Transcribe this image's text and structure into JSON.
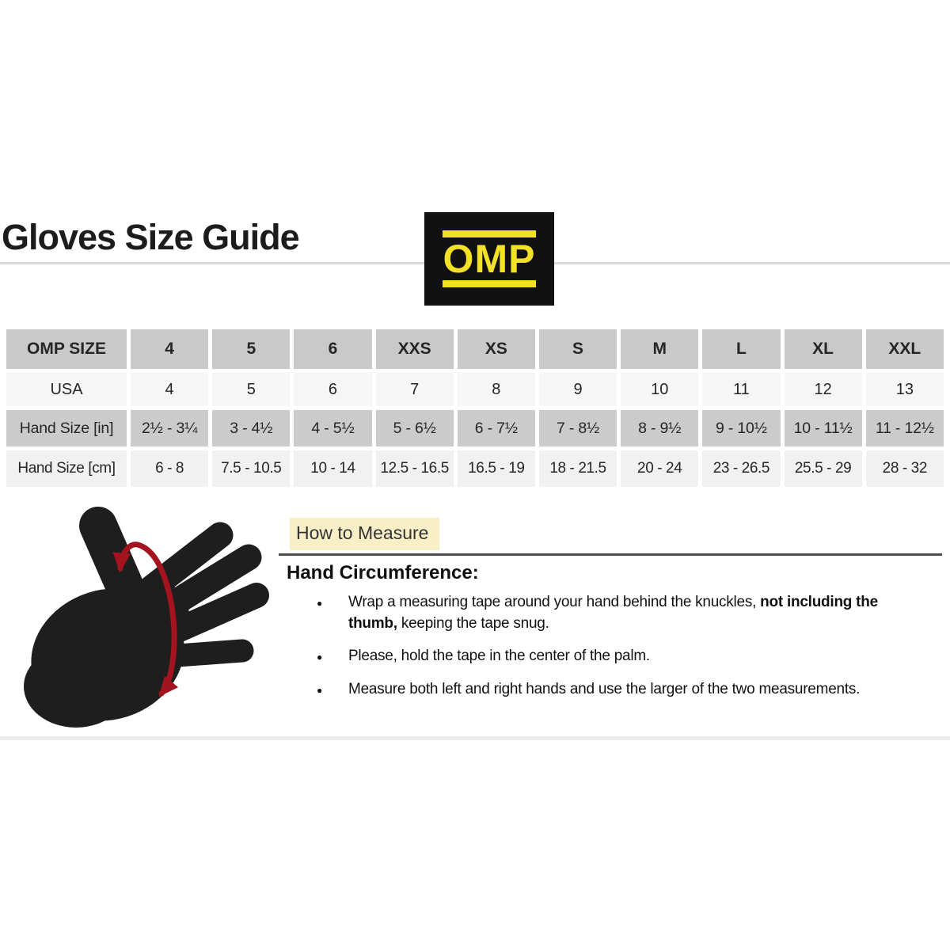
{
  "page": {
    "title": "Gloves Size Guide"
  },
  "logo": {
    "text": "OMP"
  },
  "size_table": {
    "columns": [
      "OMP SIZE",
      "4",
      "5",
      "6",
      "XXS",
      "XS",
      "S",
      "M",
      "L",
      "XL",
      "XXL"
    ],
    "rows": [
      {
        "label": "USA",
        "values": [
          "4",
          "5",
          "6",
          "7",
          "8",
          "9",
          "10",
          "11",
          "12",
          "13"
        ]
      },
      {
        "label": "Hand Size [in]",
        "values": [
          "2½ - 3¼",
          "3 - 4½",
          "4 - 5½",
          "5 - 6½",
          "6 - 7½",
          "7 - 8½",
          "8 - 9½",
          "9 - 10½",
          "10 - 11½",
          "11 - 12½"
        ]
      },
      {
        "label": "Hand Size [cm]",
        "values": [
          "6 - 8",
          "7.5 - 10.5",
          "10 - 14",
          "12.5 - 16.5",
          "16.5 - 19",
          "18 - 21.5",
          "20 - 24",
          "23 - 26.5",
          "25.5 - 29",
          "28 - 32"
        ]
      }
    ]
  },
  "how_to_measure": {
    "heading": "How to Measure",
    "subheading": "Hand Circumference:",
    "bullets": [
      [
        {
          "text": "Wrap a measuring tape around your hand behind the knuckles, ",
          "bold": false
        },
        {
          "text": "not including the\nthumb,",
          "bold": true
        },
        {
          "text": " keeping the tape snug.",
          "bold": false
        }
      ],
      [
        {
          "text": "Please, hold the tape in the center of the palm.",
          "bold": false
        }
      ],
      [
        {
          "text": "Measure both left and right hands and use the larger of the two measurements.",
          "bold": false
        }
      ]
    ]
  },
  "colors": {
    "logo_bg": "#111111",
    "logo_yellow": "#f2e126",
    "table_header_gray": "#c9c9c9",
    "table_row_light": "#f6f6f6",
    "table_row_gray": "#cbcbcb",
    "highlight_yellow": "#f8efc7",
    "arrow_red": "#a3141f",
    "hand_black": "#1e1e1e"
  }
}
